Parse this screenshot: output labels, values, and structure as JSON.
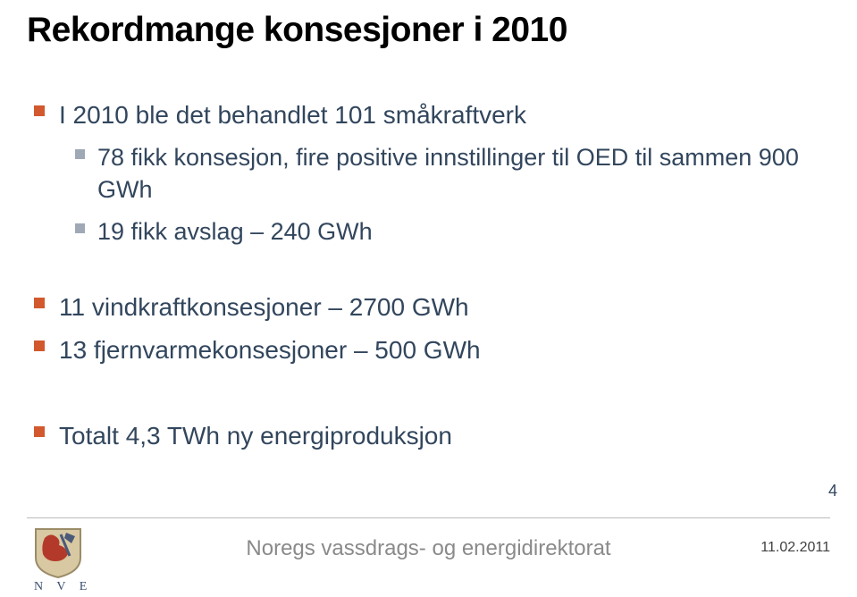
{
  "title": {
    "text": "Rekordmange konsesjoner i 2010",
    "fontsize": 39,
    "color": "#000000",
    "weight": 700
  },
  "bullets": {
    "main_fontsize": 28,
    "sub_fontsize": 27,
    "main_color": "#32465d",
    "sub_color": "#32465d",
    "main_marker": {
      "size": 12,
      "color": "#d2592d"
    },
    "sub_marker": {
      "size": 11,
      "color": "#9fa9b6"
    },
    "items": [
      {
        "level": 0,
        "text": "I 2010 ble det behandlet 101 småkraftverk"
      },
      {
        "level": 1,
        "text": "78 fikk konsesjon, fire positive innstillinger til OED til sammen  900 GWh"
      },
      {
        "level": 1,
        "text": "19 fikk avslag – 240 GWh"
      },
      {
        "gap": "md"
      },
      {
        "level": 0,
        "text": "11 vindkraftkonsesjoner – 2700 GWh"
      },
      {
        "level": 0,
        "text": "13 fjernvarmekonsesjoner – 500 GWh"
      },
      {
        "gap": "lg"
      },
      {
        "level": 0,
        "text": "Totalt 4,3 TWh ny energiproduksjon"
      }
    ]
  },
  "page_number": {
    "text": "4",
    "fontsize": 18,
    "color": "#32465d"
  },
  "footer": {
    "org_text": "Noregs vassdrags- og energidirektorat",
    "org_fontsize": 24,
    "org_color": "#8a8a8a",
    "date_text": "11.02.2011",
    "date_fontsize": 16,
    "date_color": "#404040"
  },
  "logo": {
    "crest_bg": "#d9c9a3",
    "crest_outline": "#9a8c68",
    "lion_color": "#b33a2a",
    "axe_color": "#4a5a78",
    "letters": "N V E",
    "letter_color": "#3a4d6e",
    "letter_fontsize": 14
  }
}
